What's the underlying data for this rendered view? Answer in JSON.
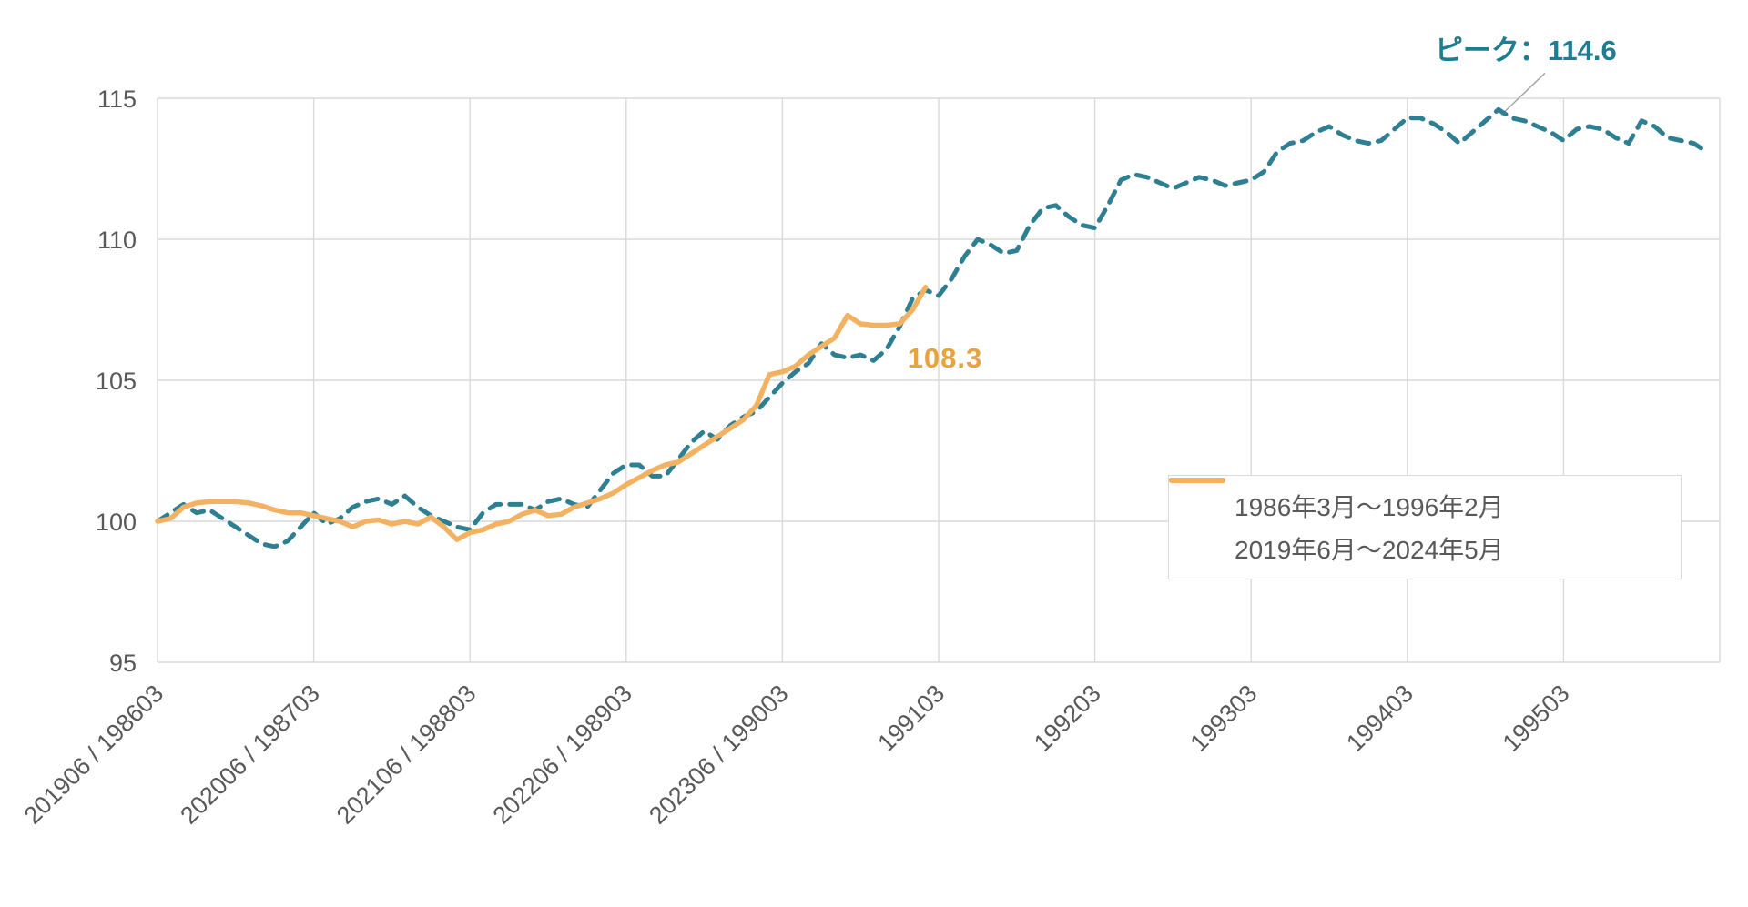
{
  "chart_data": {
    "type": "line",
    "title": "",
    "grid": true,
    "legend_position": "middle-right",
    "y_axis": {
      "min": 95,
      "max": 115,
      "ticks": [
        "95",
        "100",
        "105",
        "110",
        "115"
      ]
    },
    "x_axis": {
      "total_months": 120,
      "tick_interval_months": 12,
      "tick_labels": [
        "201906 / 198603",
        "202006 / 198703",
        "202106 / 198803",
        "202206 / 198903",
        "202306 / 199003",
        "199103",
        "199203",
        "199303",
        "199403",
        "199503"
      ]
    },
    "series": [
      {
        "name": "1986年3月〜1996年2月",
        "line_style": "dashed",
        "color": "#2E7F92",
        "values": [
          100.0,
          100.3,
          100.6,
          100.3,
          100.4,
          100.1,
          99.8,
          99.5,
          99.2,
          99.1,
          99.3,
          99.8,
          100.3,
          99.9,
          100.1,
          100.5,
          100.7,
          100.8,
          100.6,
          100.9,
          100.5,
          100.2,
          100.0,
          99.8,
          99.7,
          100.3,
          100.6,
          100.6,
          100.6,
          100.4,
          100.7,
          100.8,
          100.6,
          100.5,
          101.1,
          101.7,
          102.0,
          102.0,
          101.6,
          101.6,
          102.2,
          102.8,
          103.2,
          102.9,
          103.4,
          103.7,
          103.9,
          104.4,
          104.9,
          105.3,
          105.6,
          106.3,
          105.9,
          105.8,
          105.9,
          105.7,
          106.1,
          106.9,
          107.9,
          108.2,
          108.0,
          108.6,
          109.4,
          110.0,
          109.8,
          109.5,
          109.6,
          110.5,
          111.1,
          111.2,
          110.8,
          110.5,
          110.4,
          111.2,
          112.1,
          112.3,
          112.2,
          112.0,
          111.8,
          112.0,
          112.2,
          112.1,
          111.9,
          112.0,
          112.1,
          112.4,
          113.1,
          113.4,
          113.5,
          113.8,
          114.0,
          113.7,
          113.5,
          113.4,
          113.5,
          113.9,
          114.3,
          114.3,
          114.1,
          113.8,
          113.4,
          113.8,
          114.2,
          114.6,
          114.3,
          114.2,
          114.0,
          113.8,
          113.5,
          113.9,
          114.0,
          113.9,
          113.6,
          113.4,
          114.2,
          114.0,
          113.6,
          113.5,
          113.4,
          113.1
        ]
      },
      {
        "name": "2019年6月〜2024年5月",
        "line_style": "solid",
        "color": "#F2B262",
        "values": [
          100.0,
          100.1,
          100.5,
          100.65,
          100.7,
          100.7,
          100.7,
          100.65,
          100.55,
          100.4,
          100.3,
          100.3,
          100.2,
          100.1,
          100.0,
          99.8,
          100.0,
          100.05,
          99.9,
          100.0,
          99.9,
          100.15,
          99.8,
          99.35,
          99.6,
          99.7,
          99.9,
          100.0,
          100.25,
          100.4,
          100.2,
          100.25,
          100.5,
          100.65,
          100.8,
          101.0,
          101.3,
          101.55,
          101.8,
          102.0,
          102.1,
          102.4,
          102.7,
          103.0,
          103.3,
          103.6,
          104.1,
          105.2,
          105.3,
          105.5,
          105.9,
          106.2,
          106.5,
          107.3,
          107.0,
          106.95,
          106.95,
          107.0,
          107.5,
          108.3
        ]
      }
    ],
    "annotations": [
      {
        "id": "peak",
        "text": "ピーク：114.6",
        "color": "#1F7D93",
        "anchor_series": 0,
        "anchor_month": 103,
        "anchor_value": 114.6
      },
      {
        "id": "endpoint",
        "text": "108.3",
        "color": "#E8A33C",
        "anchor_series": 1,
        "anchor_month": 59,
        "anchor_value": 108.3
      }
    ]
  },
  "colors": {
    "grid": "#D9D9D9",
    "axis_text": "#595959",
    "leader_line": "#A6A6A6",
    "background": "#FFFFFF"
  }
}
